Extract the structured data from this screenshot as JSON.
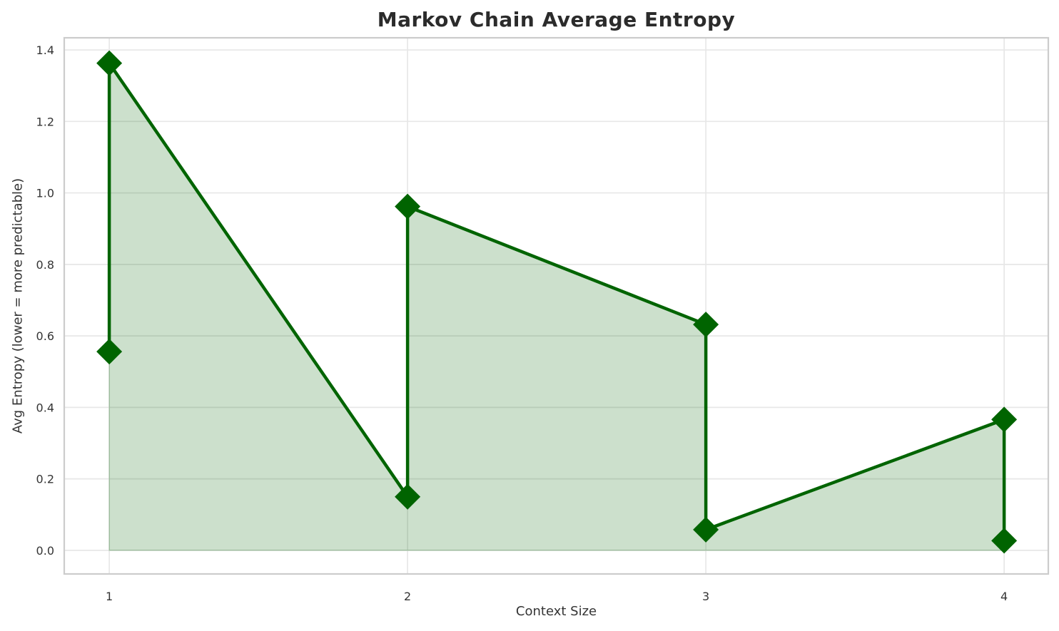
{
  "chart_data": {
    "type": "line",
    "title": "Markov Chain Average Entropy",
    "xlabel": "Context Size",
    "ylabel": "Avg Entropy (lower = more predictable)",
    "points": [
      {
        "x": 1,
        "y": 0.556
      },
      {
        "x": 1,
        "y": 1.363
      },
      {
        "x": 2,
        "y": 0.15
      },
      {
        "x": 2,
        "y": 0.962
      },
      {
        "x": 3,
        "y": 0.632
      },
      {
        "x": 3,
        "y": 0.058
      },
      {
        "x": 4,
        "y": 0.366
      },
      {
        "x": 4,
        "y": 0.027
      }
    ],
    "xticks": [
      1,
      2,
      3,
      4
    ],
    "xtick_labels": [
      "1",
      "2",
      "3",
      "4"
    ],
    "yticks": [
      0.0,
      0.2,
      0.4,
      0.6,
      0.8,
      1.0,
      1.2,
      1.4
    ],
    "ytick_labels": [
      "0.0",
      "0.2",
      "0.4",
      "0.6",
      "0.8",
      "1.0",
      "1.2",
      "1.4"
    ],
    "xlim": [
      0.849,
      4.148
    ],
    "ylim": [
      -0.066,
      1.434
    ],
    "grid": true,
    "legend": "none",
    "fill_to_zero": true,
    "marker": "diamond",
    "colors": {
      "line": "#006400",
      "marker": "#006400",
      "fill": "rgba(0,100,0,0.2)",
      "grid": "#e7e7e7",
      "spine": "#cccccc",
      "tick_text": "#343434",
      "title_text": "#2b2b2b"
    }
  }
}
